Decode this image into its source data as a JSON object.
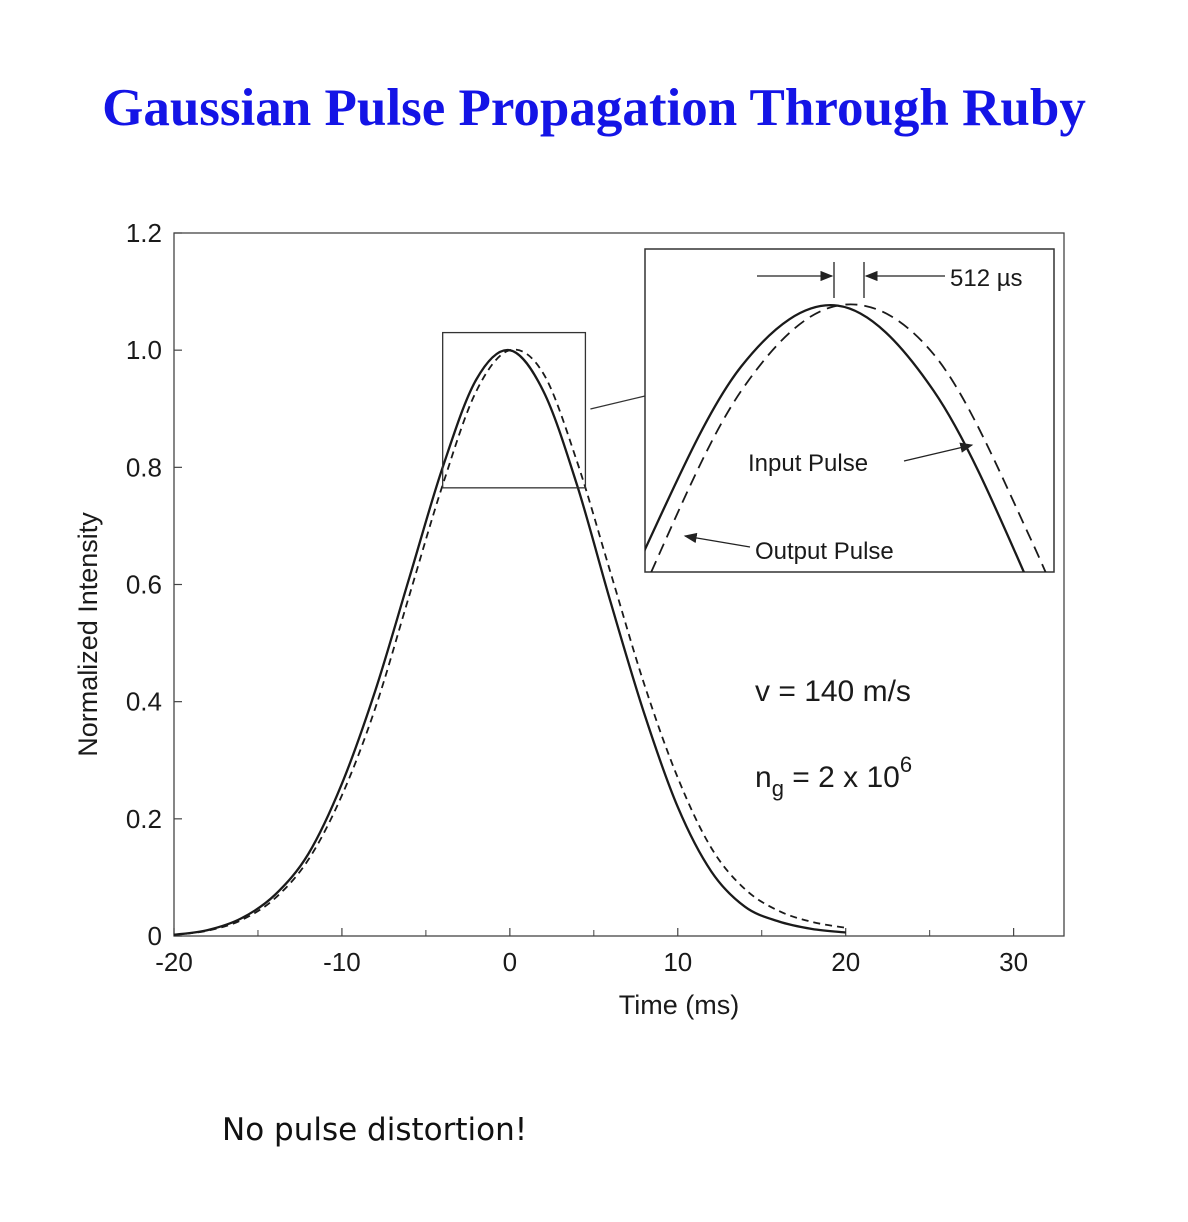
{
  "title": "Gaussian Pulse Propagation Through Ruby",
  "footnote": "No pulse distortion!",
  "colors": {
    "title": "#1414e6",
    "curves": "#1a1a1a",
    "background": "#ffffff"
  },
  "chart_data": {
    "type": "line",
    "xlabel": "Time (ms)",
    "ylabel": "Normalized Intensity",
    "xlim": [
      -20,
      33
    ],
    "ylim": [
      0,
      1.2
    ],
    "xticks": [
      -20,
      -10,
      0,
      10,
      20,
      30
    ],
    "xtick_labels": [
      "-20",
      "-10",
      "0",
      "10",
      "20",
      "30"
    ],
    "yticks": [
      0,
      0.2,
      0.4,
      0.6,
      0.8,
      1.0,
      1.2
    ],
    "ytick_labels": [
      "0",
      "0.2",
      "0.4",
      "0.6",
      "0.8",
      "1.0",
      "1.2"
    ],
    "grid": false,
    "series": [
      {
        "name": "Input Pulse",
        "style": "solid",
        "x": [
          -20,
          -18,
          -16,
          -14,
          -12,
          -10,
          -8,
          -6,
          -4,
          -2,
          0,
          2,
          4,
          6,
          8,
          10,
          12,
          14,
          16,
          18,
          20
        ],
        "y": [
          0.002,
          0.01,
          0.03,
          0.07,
          0.14,
          0.26,
          0.42,
          0.61,
          0.8,
          0.95,
          1.0,
          0.93,
          0.77,
          0.57,
          0.38,
          0.22,
          0.11,
          0.05,
          0.025,
          0.012,
          0.006
        ]
      },
      {
        "name": "Output Pulse",
        "style": "dashed",
        "x": [
          -20,
          -18,
          -16,
          -14,
          -12,
          -10,
          -8,
          -6,
          -4,
          -2,
          0,
          2,
          4,
          6,
          8,
          10,
          12,
          14,
          16,
          18,
          20
        ],
        "y": [
          0.002,
          0.009,
          0.027,
          0.064,
          0.13,
          0.24,
          0.39,
          0.58,
          0.77,
          0.93,
          1.0,
          0.96,
          0.81,
          0.62,
          0.43,
          0.27,
          0.15,
          0.08,
          0.043,
          0.024,
          0.014
        ]
      }
    ],
    "zoom_region": {
      "x": [
        -4,
        4.5
      ],
      "y": [
        0.765,
        1.03
      ]
    },
    "inset": {
      "delay_label": "512 µs",
      "input_label": "Input Pulse",
      "output_label": "Output Pulse"
    },
    "annotations": {
      "velocity": "v = 140 m/s",
      "group_index_base": "n",
      "group_index_sub": "g",
      "group_index_rest": " = 2 x 10",
      "group_index_exp": "6"
    }
  }
}
